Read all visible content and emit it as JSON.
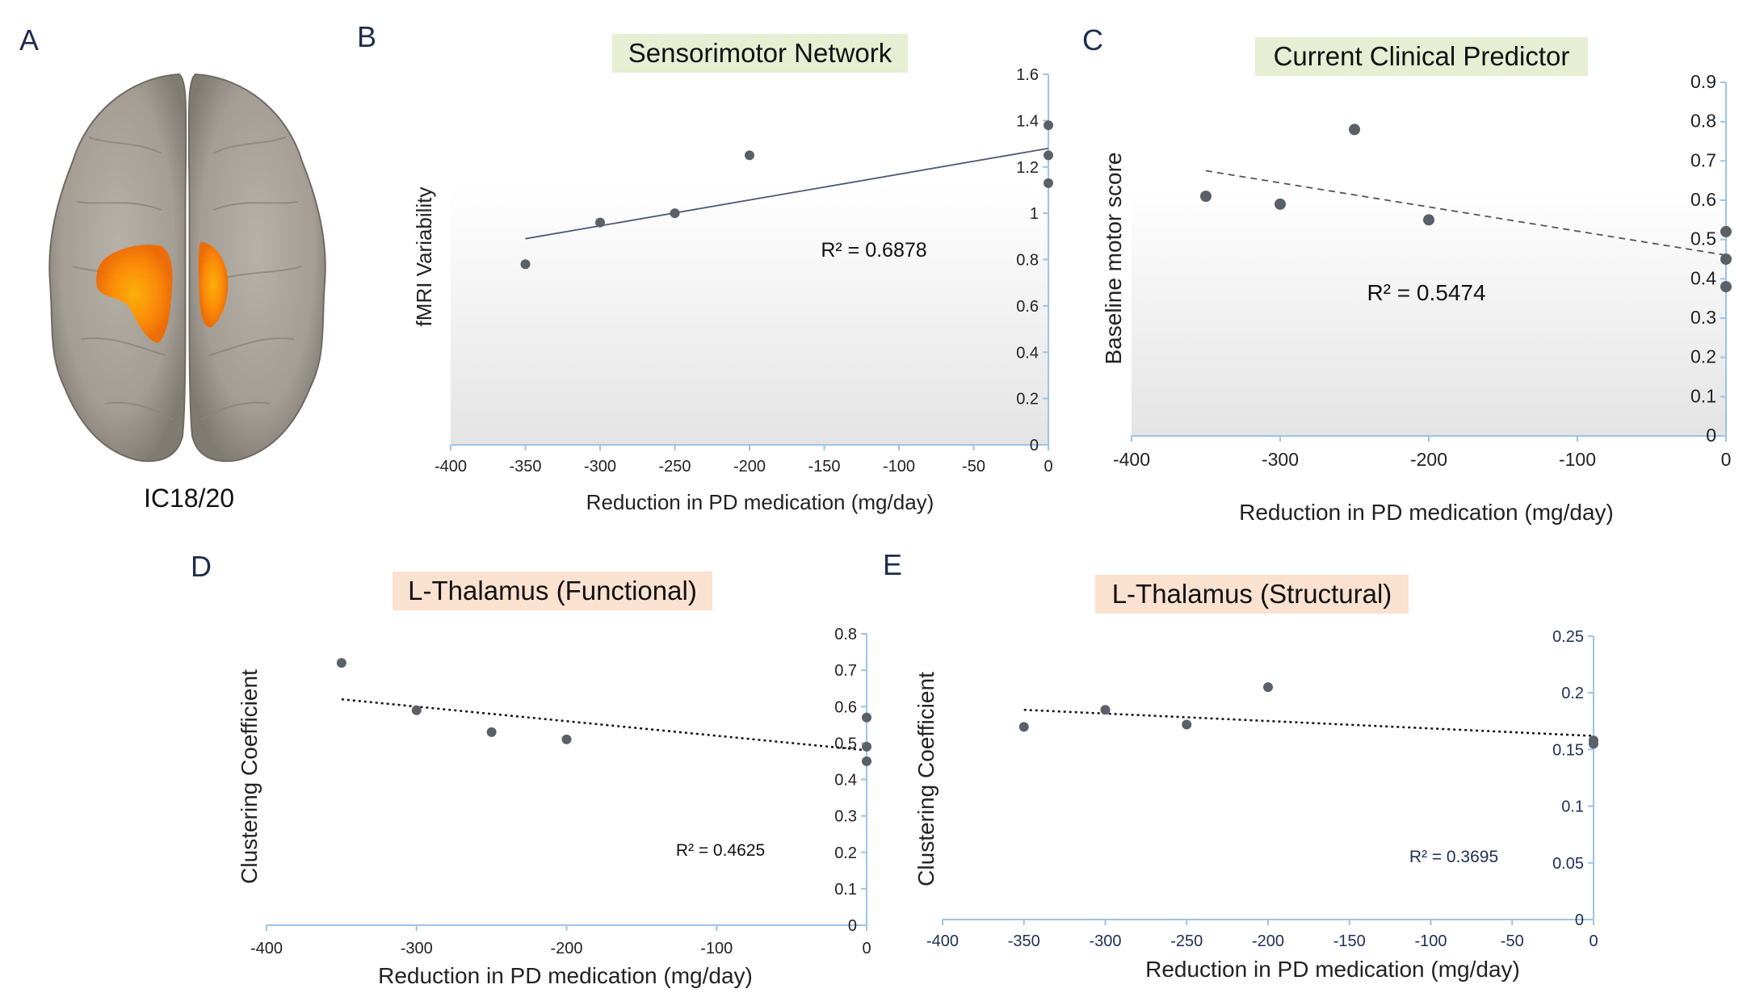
{
  "panel_letters": {
    "a": "A",
    "b": "B",
    "c": "C",
    "d": "D",
    "e": "E"
  },
  "brain": {
    "label": "IC18/20"
  },
  "colors": {
    "point": "#5a6068",
    "axis": "#9dc3e6",
    "title_green": "#e6eed3",
    "title_peach": "#fbe1d0"
  },
  "chart_data": [
    {
      "id": "B",
      "type": "scatter",
      "title": "Sensorimotor Network",
      "xlabel": "Reduction in PD medication (mg/day)",
      "ylabel": "fMRI Variability",
      "xlim": [
        -400,
        0
      ],
      "ylim": [
        0,
        1.6
      ],
      "xticks": [
        "-400",
        "-350",
        "-300",
        "-250",
        "-200",
        "-150",
        "-100",
        "-50",
        "0"
      ],
      "yticks": [
        "0",
        "0.2",
        "0.4",
        "0.6",
        "0.8",
        "1",
        "1.2",
        "1.4",
        "1.6"
      ],
      "points": [
        {
          "x": -350,
          "y": 0.78
        },
        {
          "x": -300,
          "y": 0.96
        },
        {
          "x": -250,
          "y": 1.0
        },
        {
          "x": -200,
          "y": 1.25
        },
        {
          "x": 0,
          "y": 1.38
        },
        {
          "x": 0,
          "y": 1.25
        },
        {
          "x": 0,
          "y": 1.13
        }
      ],
      "trendline": {
        "style": "solid",
        "x": [
          -350,
          0
        ],
        "y": [
          0.89,
          1.28
        ]
      },
      "r2": "R² = 0.6878"
    },
    {
      "id": "C",
      "type": "scatter",
      "title": "Current Clinical Predictor",
      "xlabel": "Reduction in PD medication (mg/day)",
      "ylabel": "Baseline motor score",
      "xlim": [
        -400,
        0
      ],
      "ylim": [
        0,
        0.9
      ],
      "xticks": [
        "-400",
        "-300",
        "-200",
        "-100",
        "0"
      ],
      "yticks": [
        "0",
        "0.1",
        "0.2",
        "0.3",
        "0.4",
        "0.5",
        "0.6",
        "0.7",
        "0.8",
        "0.9"
      ],
      "points": [
        {
          "x": -350,
          "y": 0.61
        },
        {
          "x": -300,
          "y": 0.59
        },
        {
          "x": -250,
          "y": 0.78
        },
        {
          "x": -200,
          "y": 0.55
        },
        {
          "x": 0,
          "y": 0.52
        },
        {
          "x": 0,
          "y": 0.45
        },
        {
          "x": 0,
          "y": 0.38
        }
      ],
      "trendline": {
        "style": "dashed",
        "x": [
          -350,
          0
        ],
        "y": [
          0.675,
          0.46
        ]
      },
      "r2": "R² = 0.5474"
    },
    {
      "id": "D",
      "type": "scatter",
      "title": "L-Thalamus (Functional)",
      "xlabel": "Reduction in PD medication (mg/day)",
      "ylabel": "Clustering Coefficient",
      "xlim": [
        -400,
        0
      ],
      "ylim": [
        0,
        0.8
      ],
      "xticks": [
        "-400",
        "-300",
        "-200",
        "-100",
        "0"
      ],
      "yticks": [
        "0",
        "0.1",
        "0.2",
        "0.3",
        "0.4",
        "0.5",
        "0.6",
        "0.7",
        "0.8"
      ],
      "points": [
        {
          "x": -350,
          "y": 0.72
        },
        {
          "x": -300,
          "y": 0.59
        },
        {
          "x": -250,
          "y": 0.53
        },
        {
          "x": -200,
          "y": 0.51
        },
        {
          "x": 0,
          "y": 0.57
        },
        {
          "x": 0,
          "y": 0.49
        },
        {
          "x": 0,
          "y": 0.45
        }
      ],
      "trendline": {
        "style": "dotted",
        "x": [
          -350,
          0
        ],
        "y": [
          0.62,
          0.48
        ]
      },
      "r2": "R² = 0.4625"
    },
    {
      "id": "E",
      "type": "scatter",
      "title": "L-Thalamus (Structural)",
      "xlabel": "Reduction in PD medication (mg/day)",
      "ylabel": "Clustering Coefficient",
      "xlim": [
        -400,
        0
      ],
      "ylim": [
        0,
        0.25
      ],
      "xticks": [
        "-400",
        "-350",
        "-300",
        "-250",
        "-200",
        "-150",
        "-100",
        "-50",
        "0"
      ],
      "yticks": [
        "0",
        "0.05",
        "0.1",
        "0.15",
        "0.2",
        "0.25"
      ],
      "points": [
        {
          "x": -350,
          "y": 0.17
        },
        {
          "x": -300,
          "y": 0.185
        },
        {
          "x": -250,
          "y": 0.172
        },
        {
          "x": -200,
          "y": 0.205
        },
        {
          "x": 0,
          "y": 0.158
        },
        {
          "x": 0,
          "y": 0.155
        }
      ],
      "trendline": {
        "style": "dotted",
        "x": [
          -350,
          0
        ],
        "y": [
          0.185,
          0.162
        ]
      },
      "r2": "R² = 0.3695"
    }
  ]
}
